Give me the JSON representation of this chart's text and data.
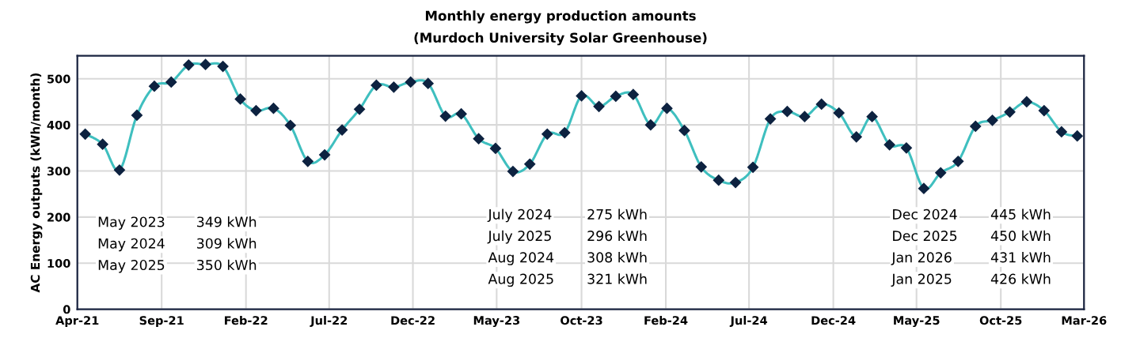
{
  "chart_data": {
    "type": "line",
    "title": "Monthly energy production amounts",
    "subtitle": "(Murdoch University Solar Greenhouse)",
    "ylabel": "AC Energy outputs (kWh/month)",
    "x": [
      "2021-05",
      "2021-06",
      "2021-07",
      "2021-08",
      "2021-09",
      "2021-10",
      "2021-11",
      "2021-12",
      "2022-01",
      "2022-02",
      "2022-03",
      "2022-04",
      "2022-05",
      "2022-06",
      "2022-07",
      "2022-08",
      "2022-09",
      "2022-10",
      "2022-11",
      "2022-12",
      "2023-01",
      "2023-02",
      "2023-03",
      "2023-04",
      "2023-05",
      "2023-06",
      "2023-07",
      "2023-08",
      "2023-09",
      "2023-10",
      "2023-11",
      "2023-12",
      "2024-01",
      "2024-02",
      "2024-03",
      "2024-04",
      "2024-05",
      "2024-06",
      "2024-07",
      "2024-08",
      "2024-09",
      "2024-10",
      "2024-11",
      "2024-12",
      "2025-01",
      "2025-02",
      "2025-03",
      "2025-04",
      "2025-05",
      "2025-06",
      "2025-07",
      "2025-08",
      "2025-09",
      "2025-10",
      "2025-11",
      "2025-12",
      "2026-01",
      "2026-02",
      "2026-03"
    ],
    "series": [
      {
        "color": "#3fbfbf",
        "values": [
          380,
          358,
          302,
          421,
          484,
          493,
          530,
          531,
          527,
          456,
          431,
          436,
          399,
          321,
          335,
          389,
          434,
          486,
          482,
          493,
          490,
          419,
          424,
          370,
          349,
          299,
          315,
          380,
          383,
          463,
          440,
          462,
          466,
          400,
          436,
          388,
          309,
          280,
          275,
          308,
          413,
          429,
          418,
          445,
          426,
          374,
          418,
          357,
          350,
          262,
          296,
          321,
          397,
          410,
          428,
          450,
          431,
          385,
          376
        ]
      }
    ],
    "marker": "diamond",
    "line_style": "solid",
    "grid": true,
    "legend": false,
    "ylim": [
      0,
      550
    ],
    "yticks": [
      0,
      100,
      200,
      300,
      400,
      500
    ],
    "xlim": [
      "2021-04-17",
      "2026-03-13"
    ],
    "xticks": [
      {
        "value": "2021-04-17",
        "label": "Apr-21"
      },
      {
        "value": "2021-09-14",
        "label": "Sep-21"
      },
      {
        "value": "2022-02-11",
        "label": "Feb-22"
      },
      {
        "value": "2022-07-09",
        "label": "Jul-22"
      },
      {
        "value": "2022-12-05",
        "label": "Dec-22"
      },
      {
        "value": "2023-05-03",
        "label": "May-23"
      },
      {
        "value": "2023-10-01",
        "label": "Oct-23"
      },
      {
        "value": "2024-02-28",
        "label": "Feb-24"
      },
      {
        "value": "2024-07-25",
        "label": "Jul-24"
      },
      {
        "value": "2024-12-22",
        "label": "Dec-24"
      },
      {
        "value": "2025-05-19",
        "label": "May-25"
      },
      {
        "value": "2025-10-16",
        "label": "Oct-25"
      },
      {
        "value": "2026-03-13",
        "label": "Mar-26"
      }
    ],
    "annotations": [
      "May 2023 349 kWh",
      "May 2024 309 kWh",
      "May 2025 350 kWh",
      "July 2024 275 kWh",
      "July 2025 296 kWh",
      "Aug 2024 308 kWh",
      "Aug 2025 321 kWh",
      "Dec 2024 445 kWh",
      "Dec 2025 450 kWh",
      "Jan 2026 431 kWh",
      "Jan 2025 426 kWh"
    ]
  }
}
